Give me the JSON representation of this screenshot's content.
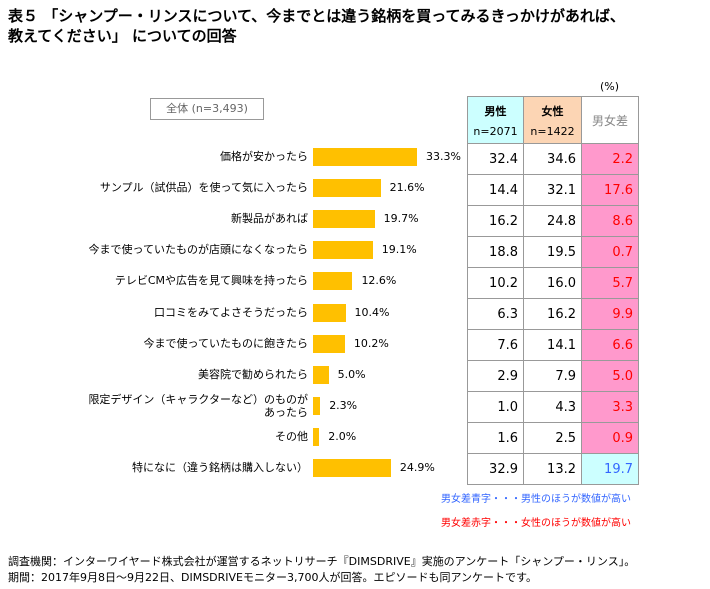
{
  "title_line1": "表５ 「シャンプー・リンスについて、今までとは違う銘柄を買ってみるきっかけがあれば、",
  "title_line2": "教えてください」 についての回答",
  "unit": "(%)",
  "total_label": "全体 (n=3,493)",
  "table_header": {
    "male": "男性",
    "male_n": "n=2071",
    "female": "女性",
    "female_n": "n=1422",
    "diff": "男女差"
  },
  "colors": {
    "bar": "#ffc000",
    "male_header": "#ccffff",
    "female_header": "#fcd5b4",
    "diff_female_bg": "#ff99cc",
    "diff_male_bg": "#ccffff",
    "red": "#ff0000",
    "blue": "#3366ff"
  },
  "chart_data": {
    "type": "bar",
    "orientation": "horizontal",
    "categories": [
      "価格が安かったら",
      "サンプル（試供品）を使って気に入ったら",
      "新製品があれば",
      "今まで使っていたものが店頭になくなったら",
      "テレビCMや広告を見て興味を持ったら",
      "口コミをみてよさそうだったら",
      "今まで使っていたものに飽きたら",
      "美容院で勧められたら",
      "限定デザイン（キャラクターなど）のものが\nあったら",
      "その他",
      "特になに（違う銘柄は購入しない）"
    ],
    "values": [
      33.3,
      21.6,
      19.7,
      19.1,
      12.6,
      10.4,
      10.2,
      5.0,
      2.3,
      2.0,
      24.9
    ],
    "value_labels": [
      "33.3%",
      "21.6%",
      "19.7%",
      "19.1%",
      "12.6%",
      "10.4%",
      "10.2%",
      "5.0%",
      "2.3%",
      "2.0%",
      "24.9%"
    ],
    "male": [
      "32.4",
      "14.4",
      "16.2",
      "18.8",
      "10.2",
      "6.3",
      "7.6",
      "2.9",
      "1.0",
      "1.6",
      "32.9"
    ],
    "female": [
      "34.6",
      "32.1",
      "24.8",
      "19.5",
      "16.0",
      "16.2",
      "14.1",
      "7.9",
      "4.3",
      "2.5",
      "13.2"
    ],
    "diff": [
      "2.2",
      "17.6",
      "8.6",
      "0.7",
      "5.7",
      "9.9",
      "6.6",
      "5.0",
      "3.3",
      "0.9",
      "19.7"
    ],
    "diff_higher": [
      "female",
      "female",
      "female",
      "female",
      "female",
      "female",
      "female",
      "female",
      "female",
      "female",
      "male"
    ]
  },
  "notes": {
    "blue": "男女差青字・・・男性のほうが数値が高い",
    "red": "男女差赤字・・・女性のほうが数値が高い"
  },
  "footer": {
    "line1": "調査機関：インターワイヤード株式会社が運営するネットリサーチ『DIMSDRIVE』実施のアンケート「シャンプー・リンス」。",
    "line2": "期間：2017年9月8日～9月22日、DIMSDRIVEモニター3,700人が回答。エピソードも同アンケートです。"
  }
}
